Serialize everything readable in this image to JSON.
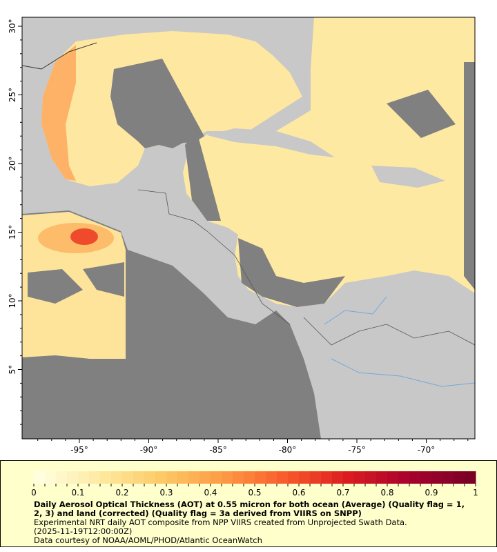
{
  "map": {
    "lon_ticks": [
      "-95°",
      "-90°",
      "-85°",
      "-80°",
      "-75°",
      "-70°"
    ],
    "lon_values": [
      -95,
      -90,
      -85,
      -80,
      -75,
      -70
    ],
    "lat_ticks": [
      "30°",
      "25°",
      "20°",
      "15°",
      "10°",
      "5°"
    ],
    "lat_values": [
      30,
      25,
      20,
      15,
      10,
      5
    ],
    "colors": {
      "land": "#c8c8c8",
      "no_data": "#808080",
      "low_aot": "#fee9a3",
      "border": "#333333",
      "rivers": "#6fa8dc"
    }
  },
  "colorbar": {
    "min": 0,
    "max": 1,
    "tick_labels": [
      "0",
      "0.1",
      "0.2",
      "0.3",
      "0.4",
      "0.5",
      "0.6",
      "0.7",
      "0.8",
      "0.9",
      "1"
    ],
    "colors": [
      "#ffffe0",
      "#fee9a0",
      "#fdc965",
      "#fd9a44",
      "#f95a2c",
      "#dc1c20",
      "#a8022d",
      "#7a0026"
    ]
  },
  "caption": {
    "title": "Daily Aerosol Optical Thickness (AOT) at 0.55 micron for both ocean (Average) (Quality flag = 1, 2, 3) and land (corrected) (Quality flag = 3a derived from VIIRS on SNPP)",
    "line1": "Experimental NRT daily AOT composite from NPP VIIRS created from Unprojected Swath Data.",
    "line2": "(2025-11-19T12:00:00Z)",
    "line3": "Data courtesy of NOAA/AOML/PHOD/Atlantic OceanWatch"
  }
}
